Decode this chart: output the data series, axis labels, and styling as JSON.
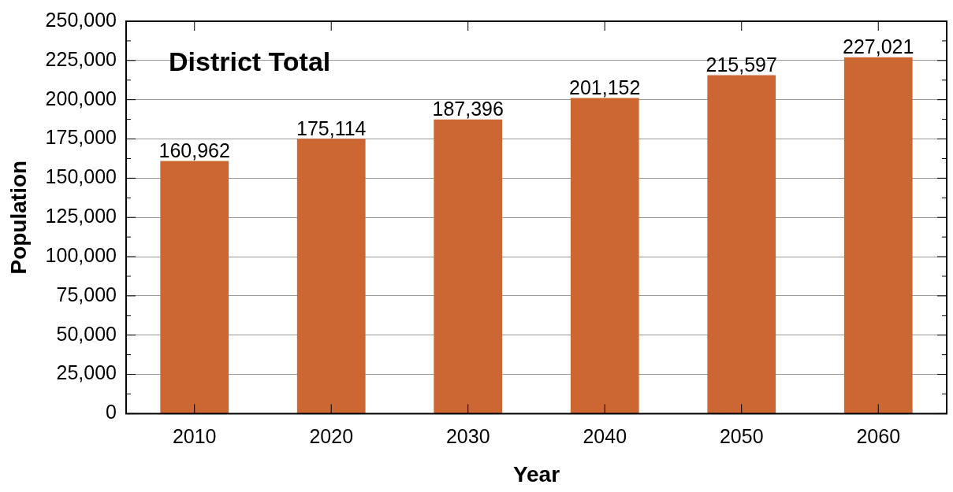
{
  "chart_data": {
    "type": "bar",
    "title": "District Total",
    "xlabel": "Year",
    "ylabel": "Population",
    "categories": [
      "2010",
      "2020",
      "2030",
      "2040",
      "2050",
      "2060"
    ],
    "values": [
      160962,
      175114,
      187396,
      201152,
      215597,
      227021
    ],
    "value_labels": [
      "160,962",
      "175,114",
      "187,396",
      "201,152",
      "215,597",
      "227,021"
    ],
    "color": "#cc6633",
    "ylim": [
      0,
      250000
    ],
    "yticks": [
      0,
      {
        "value": 25000,
        "label": "25,000"
      },
      {
        "value": 50000,
        "label": "50,000"
      },
      {
        "value": 75000,
        "label": "75,000"
      },
      {
        "value": 100000,
        "label": "100,000"
      },
      {
        "value": 125000,
        "label": "125,000"
      },
      {
        "value": 150000,
        "label": "150,000"
      },
      {
        "value": 175000,
        "label": "175,000"
      },
      {
        "value": 200000,
        "label": "200,000"
      },
      {
        "value": 225000,
        "label": "225,000"
      },
      {
        "value": 250000,
        "label": "250,000"
      }
    ],
    "grid": "y",
    "legend": false
  }
}
